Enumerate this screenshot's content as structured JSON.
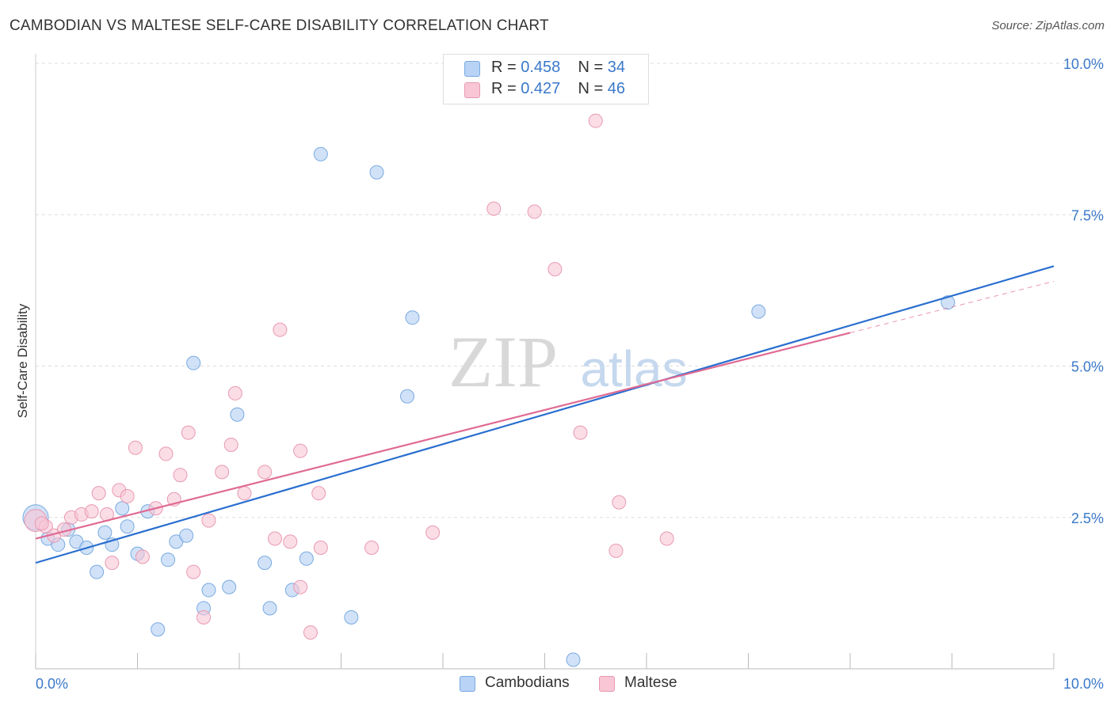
{
  "title": "CAMBODIAN VS MALTESE SELF-CARE DISABILITY CORRELATION CHART",
  "source": "Source: ZipAtlas.com",
  "watermark": {
    "zip": "ZIP",
    "atlas": "atlas"
  },
  "legend": {
    "rows": [
      {
        "r_label": "R = ",
        "r_value": "0.458",
        "n_label": "N = ",
        "n_value": "34"
      },
      {
        "r_label": "R = ",
        "r_value": "0.427",
        "n_label": "N = ",
        "n_value": "46"
      }
    ]
  },
  "bottom_legend": [
    "Cambodians",
    "Maltese"
  ],
  "colors": {
    "blue_fill": "#b8d3f5",
    "blue_stroke": "#7aaae0",
    "blue_line": "#2a6fcf",
    "pink_fill": "#f8c6d5",
    "pink_stroke": "#e89ab2",
    "pink_line": "#e06a93",
    "tick_label": "#3a78c9",
    "grid": "#dddddd"
  },
  "chart_data": {
    "type": "scatter",
    "title": "CAMBODIAN VS MALTESE SELF-CARE DISABILITY CORRELATION CHART",
    "xlabel": "",
    "ylabel": "Self-Care Disability",
    "xlim": [
      0,
      10
    ],
    "ylim": [
      0,
      10
    ],
    "x_tick_labels": [
      "0.0%",
      "10.0%"
    ],
    "y_ticks": [
      2.5,
      5.0,
      7.5,
      10.0
    ],
    "y_tick_labels": [
      "2.5%",
      "5.0%",
      "7.5%",
      "10.0%"
    ],
    "grid": "horizontal dashed",
    "legend_position": "top-center",
    "series": [
      {
        "name": "Cambodians",
        "points": [
          [
            0.0,
            2.5
          ],
          [
            0.12,
            2.15
          ],
          [
            0.22,
            2.05
          ],
          [
            0.32,
            2.3
          ],
          [
            0.4,
            2.1
          ],
          [
            0.5,
            2.0
          ],
          [
            0.6,
            1.6
          ],
          [
            0.68,
            2.25
          ],
          [
            0.75,
            2.05
          ],
          [
            0.85,
            2.65
          ],
          [
            0.9,
            2.35
          ],
          [
            1.0,
            1.9
          ],
          [
            1.1,
            2.6
          ],
          [
            1.2,
            0.65
          ],
          [
            1.3,
            1.8
          ],
          [
            1.38,
            2.1
          ],
          [
            1.48,
            2.2
          ],
          [
            1.55,
            5.05
          ],
          [
            1.65,
            1.0
          ],
          [
            1.7,
            1.3
          ],
          [
            1.9,
            1.35
          ],
          [
            1.98,
            4.2
          ],
          [
            2.25,
            1.75
          ],
          [
            2.3,
            1.0
          ],
          [
            2.52,
            1.3
          ],
          [
            2.66,
            1.82
          ],
          [
            2.8,
            8.5
          ],
          [
            3.1,
            0.85
          ],
          [
            3.35,
            8.2
          ],
          [
            3.65,
            4.5
          ],
          [
            3.7,
            5.8
          ],
          [
            5.28,
            0.15
          ],
          [
            7.1,
            5.9
          ],
          [
            8.96,
            6.05
          ]
        ]
      },
      {
        "name": "Maltese",
        "points": [
          [
            0.0,
            2.45
          ],
          [
            0.1,
            2.35
          ],
          [
            0.18,
            2.2
          ],
          [
            0.28,
            2.3
          ],
          [
            0.35,
            2.5
          ],
          [
            0.45,
            2.55
          ],
          [
            0.55,
            2.6
          ],
          [
            0.62,
            2.9
          ],
          [
            0.7,
            2.55
          ],
          [
            0.75,
            1.75
          ],
          [
            0.82,
            2.95
          ],
          [
            0.9,
            2.85
          ],
          [
            0.98,
            3.65
          ],
          [
            1.05,
            1.85
          ],
          [
            1.18,
            2.65
          ],
          [
            1.28,
            3.55
          ],
          [
            1.36,
            2.8
          ],
          [
            1.42,
            3.2
          ],
          [
            1.5,
            3.9
          ],
          [
            1.55,
            1.6
          ],
          [
            1.65,
            0.85
          ],
          [
            1.7,
            2.45
          ],
          [
            1.83,
            3.25
          ],
          [
            1.92,
            3.7
          ],
          [
            1.96,
            4.55
          ],
          [
            2.05,
            2.9
          ],
          [
            2.25,
            3.25
          ],
          [
            2.35,
            2.15
          ],
          [
            2.4,
            5.6
          ],
          [
            2.5,
            2.1
          ],
          [
            2.6,
            1.35
          ],
          [
            2.6,
            3.6
          ],
          [
            2.7,
            0.6
          ],
          [
            2.78,
            2.9
          ],
          [
            2.8,
            2.0
          ],
          [
            3.3,
            2.0
          ],
          [
            3.9,
            2.25
          ],
          [
            4.5,
            7.6
          ],
          [
            4.9,
            7.55
          ],
          [
            5.1,
            6.6
          ],
          [
            5.35,
            3.9
          ],
          [
            5.5,
            9.05
          ],
          [
            5.7,
            1.95
          ],
          [
            5.73,
            2.75
          ],
          [
            6.2,
            2.15
          ],
          [
            0.06,
            2.4
          ]
        ]
      }
    ],
    "trend_lines": [
      {
        "name": "Cambodians",
        "x": [
          0,
          10
        ],
        "y": [
          1.75,
          6.65
        ],
        "r": 0.458,
        "n": 34
      },
      {
        "name": "Maltese",
        "x": [
          0,
          8.0
        ],
        "y": [
          2.15,
          5.55
        ],
        "dashed_extension": [
          8.0,
          10
        ],
        "r": 0.427,
        "n": 46
      }
    ]
  }
}
